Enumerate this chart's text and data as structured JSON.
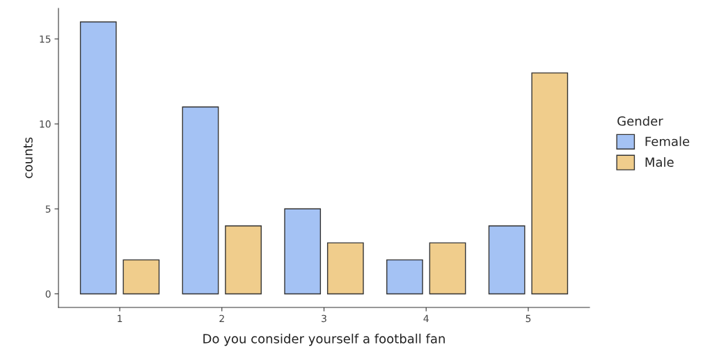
{
  "chart_data": {
    "type": "bar",
    "xlabel": "Do you consider yourself a football fan",
    "ylabel": "counts",
    "legend_title": "Gender",
    "categories": [
      "1",
      "2",
      "3",
      "4",
      "5"
    ],
    "series": [
      {
        "name": "Female",
        "color": "#a4c2f4",
        "values": [
          16,
          11,
          5,
          2,
          4
        ]
      },
      {
        "name": "Male",
        "color": "#f0cd8c",
        "values": [
          2,
          4,
          3,
          3,
          13
        ]
      }
    ],
    "ylim": [
      -0.8,
      16.8
    ],
    "yticks": [
      0,
      5,
      10,
      15
    ],
    "grid": false,
    "legend": "right"
  }
}
